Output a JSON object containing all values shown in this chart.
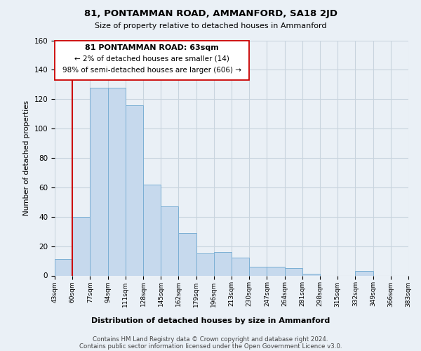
{
  "title": "81, PONTAMMAN ROAD, AMMANFORD, SA18 2JD",
  "subtitle": "Size of property relative to detached houses in Ammanford",
  "xlabel": "Distribution of detached houses by size in Ammanford",
  "ylabel": "Number of detached properties",
  "bar_values": [
    11,
    40,
    128,
    128,
    116,
    62,
    47,
    29,
    15,
    16,
    12,
    6,
    6,
    5,
    1,
    0,
    0,
    3,
    0,
    0
  ],
  "bin_labels": [
    "43sqm",
    "60sqm",
    "77sqm",
    "94sqm",
    "111sqm",
    "128sqm",
    "145sqm",
    "162sqm",
    "179sqm",
    "196sqm",
    "213sqm",
    "230sqm",
    "247sqm",
    "264sqm",
    "281sqm",
    "298sqm",
    "315sqm",
    "332sqm",
    "349sqm",
    "366sqm",
    "383sqm"
  ],
  "bar_color": "#c6d9ed",
  "bar_edge_color": "#7bafd4",
  "marker_color": "#cc0000",
  "ylim": [
    0,
    160
  ],
  "yticks": [
    0,
    20,
    40,
    60,
    80,
    100,
    120,
    140,
    160
  ],
  "annotation_title": "81 PONTAMMAN ROAD: 63sqm",
  "annotation_line1": "← 2% of detached houses are smaller (14)",
  "annotation_line2": "98% of semi-detached houses are larger (606) →",
  "footer_line1": "Contains HM Land Registry data © Crown copyright and database right 2024.",
  "footer_line2": "Contains public sector information licensed under the Open Government Licence v3.0.",
  "bg_color": "#eaf0f6",
  "plot_bg_color": "#eaf0f6",
  "grid_color": "#c8d4de"
}
